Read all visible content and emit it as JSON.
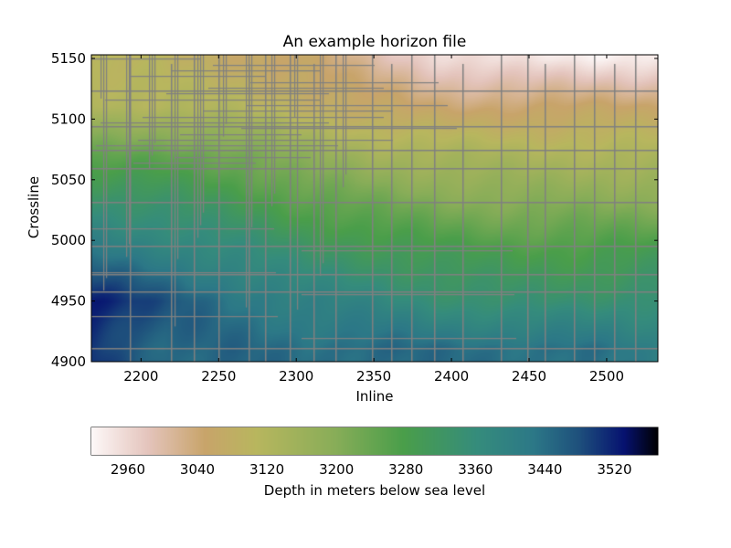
{
  "chart_data": {
    "type": "heatmap",
    "title": "An example horizon file",
    "xlabel": "Inline",
    "ylabel": "Crossline",
    "xlim": [
      2168,
      2533
    ],
    "ylim": [
      4900,
      5153
    ],
    "xticks": [
      2200,
      2250,
      2300,
      2350,
      2400,
      2450,
      2500
    ],
    "yticks": [
      4900,
      4950,
      5000,
      5050,
      5100,
      5150
    ],
    "grid": false,
    "colormap": "gist_earth_r",
    "colorbar": {
      "label": "Depth in meters below sea level",
      "range": [
        2918,
        3570
      ],
      "ticks": [
        2960,
        3040,
        3120,
        3200,
        3280,
        3360,
        3440,
        3520
      ],
      "orientation": "horizontal",
      "placement": "bottom"
    },
    "depth_grid": {
      "inlines": [
        2170,
        2215,
        2260,
        2305,
        2350,
        2395,
        2440,
        2485,
        2530
      ],
      "crosslines": [
        5150,
        5110,
        5070,
        5030,
        4990,
        4950,
        4910
      ],
      "values": [
        [
          3100,
          3090,
          3070,
          3050,
          3000,
          2960,
          2940,
          2935,
          2940
        ],
        [
          3130,
          3120,
          3110,
          3090,
          3060,
          3040,
          3050,
          3050,
          3050
        ],
        [
          3240,
          3250,
          3230,
          3180,
          3150,
          3140,
          3130,
          3130,
          3130
        ],
        [
          3350,
          3330,
          3300,
          3260,
          3230,
          3210,
          3200,
          3200,
          3200
        ],
        [
          3420,
          3400,
          3370,
          3330,
          3310,
          3290,
          3280,
          3280,
          3290
        ],
        [
          3530,
          3470,
          3430,
          3400,
          3380,
          3350,
          3340,
          3340,
          3360
        ],
        [
          3500,
          3450,
          3450,
          3440,
          3450,
          3440,
          3440,
          3440,
          3400
        ]
      ]
    },
    "gap_inlines": [
      2193,
      2219,
      2234,
      2250,
      2269,
      2280,
      2296,
      2311,
      2325,
      2349,
      2361,
      2374,
      2389,
      2407,
      2432,
      2449,
      2460,
      2479,
      2492,
      2505,
      2518
    ],
    "gap_crosslines": [
      5124,
      5094,
      5075,
      5060,
      5032,
      4996,
      4972,
      4958,
      4911
    ]
  }
}
